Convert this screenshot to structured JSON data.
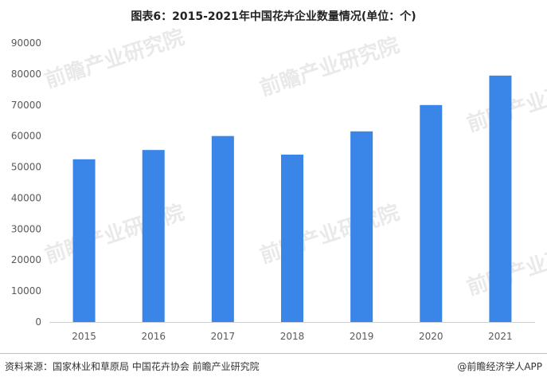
{
  "header": {
    "title": "图表6：2015-2021年中国花卉企业数量情况(单位：个)"
  },
  "footer": {
    "source": "资料来源：国家林业和草原局 中国花卉协会 前瞻产业研究院",
    "brand": "@前瞻经济学人APP"
  },
  "watermark": {
    "text": "前瞻产业研究院"
  },
  "chart_data": {
    "type": "bar",
    "categories": [
      "2015",
      "2016",
      "2017",
      "2018",
      "2019",
      "2020",
      "2021"
    ],
    "series": [
      {
        "values": [
          52500,
          55500,
          60000,
          54000,
          61500,
          70000,
          79500
        ]
      }
    ],
    "ylim": [
      0,
      90000
    ],
    "yticks": [
      0,
      10000,
      20000,
      30000,
      40000,
      50000,
      60000,
      70000,
      80000,
      90000
    ],
    "grid": false,
    "legend": "none",
    "bar_color": "#3a86e8",
    "axis_color": "#d0d0d0"
  }
}
